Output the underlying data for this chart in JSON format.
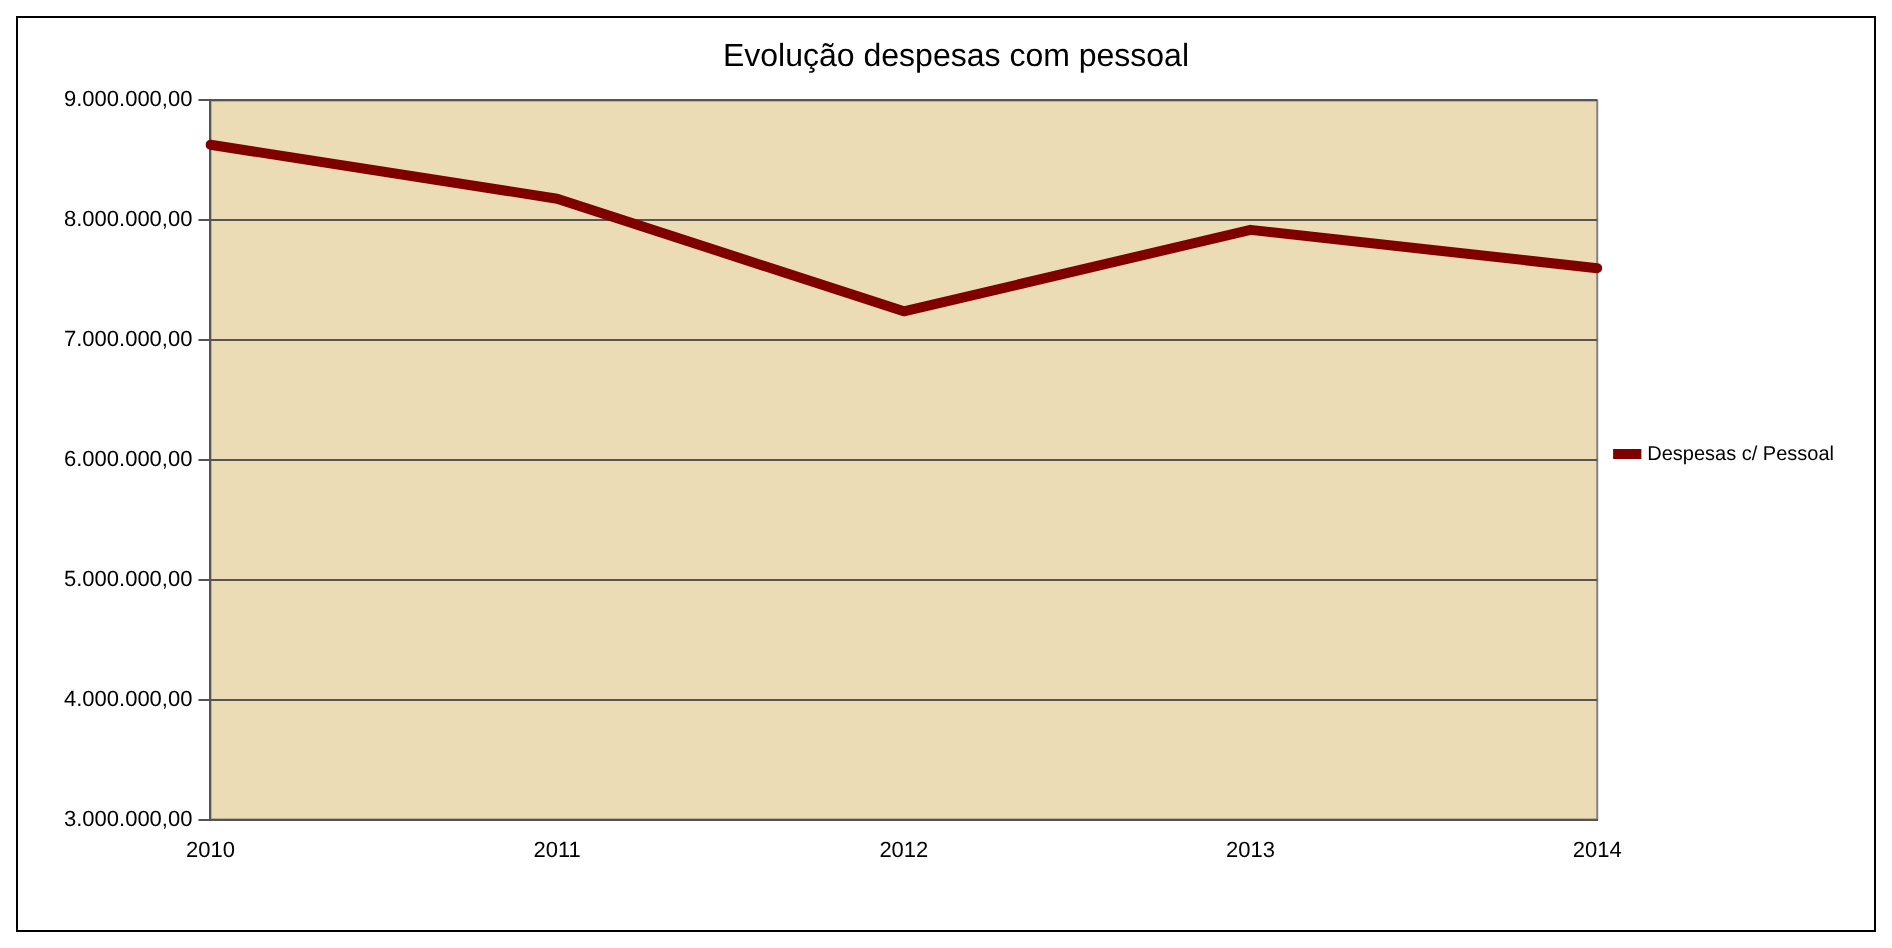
{
  "chart_data": {
    "type": "line",
    "title": "Evolução despesas com pessoal",
    "categories": [
      "2010",
      "2011",
      "2012",
      "2013",
      "2014"
    ],
    "series": [
      {
        "name": "Despesas c/ Pessoal",
        "color": "#800000",
        "values": [
          8630000,
          8180000,
          7240000,
          7920000,
          7600000
        ]
      }
    ],
    "ylim": [
      3000000,
      9000000
    ],
    "yticks": [
      {
        "value": 3000000,
        "label": "3.000.000,00"
      },
      {
        "value": 4000000,
        "label": "4.000.000,00"
      },
      {
        "value": 5000000,
        "label": "5.000.000,00"
      },
      {
        "value": 6000000,
        "label": "6.000.000,00"
      },
      {
        "value": 7000000,
        "label": "7.000.000,00"
      },
      {
        "value": 8000000,
        "label": "8.000.000,00"
      },
      {
        "value": 9000000,
        "label": "9.000.000,00"
      }
    ],
    "grid": "y",
    "legend": "right",
    "marker": "none",
    "line_style": "solid"
  }
}
